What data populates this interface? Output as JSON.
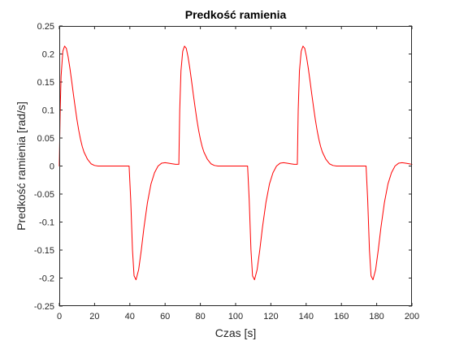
{
  "chart_data": {
    "type": "line",
    "title": "Predkość ramienia",
    "xlabel": "Czas [s]",
    "ylabel": "Predkość ramienia [rad/s]",
    "xlim": [
      0,
      200
    ],
    "ylim": [
      -0.25,
      0.25
    ],
    "xticks": [
      0,
      20,
      40,
      60,
      80,
      100,
      120,
      140,
      160,
      180,
      200
    ],
    "yticks": [
      0.25,
      0.2,
      0.15,
      0.1,
      0.05,
      0,
      -0.05,
      -0.1,
      -0.15,
      -0.2,
      -0.25
    ],
    "xtick_labels": [
      "0",
      "20",
      "40",
      "60",
      "80",
      "100",
      "120",
      "140",
      "160",
      "180",
      "200"
    ],
    "ytick_labels": [
      "0.25",
      "0.2",
      "0.15",
      "0.1",
      "0.05",
      "0",
      "-0.05",
      "-0.1",
      "-0.15",
      "-0.2",
      "-0.25"
    ],
    "grid": false,
    "legend": null,
    "series": [
      {
        "name": "Predkość ramienia",
        "color": "#ff0000",
        "x": [
          0,
          0.5,
          1,
          2,
          3,
          4,
          5,
          6,
          7,
          8,
          9,
          10,
          11,
          12,
          13,
          14,
          16,
          18,
          20,
          22,
          25,
          30,
          35,
          39.6,
          39.6,
          40.5,
          41.5,
          42.4,
          43.5,
          45,
          46.5,
          48,
          50,
          52,
          54,
          56,
          58,
          60,
          62,
          64,
          66,
          67.8,
          67.8,
          68.3,
          69,
          70,
          71,
          72,
          73,
          74,
          75,
          76,
          77,
          78,
          79,
          80,
          81,
          82,
          84,
          86,
          88,
          90,
          92,
          95,
          100,
          105,
          106.8,
          106.8,
          107.7,
          108.7,
          109.6,
          110.7,
          112.2,
          113.7,
          115.2,
          117.2,
          119.2,
          121.2,
          123.2,
          125.2,
          127.2,
          129.2,
          131.2,
          133.2,
          135,
          135,
          135.5,
          136.2,
          137.2,
          138.2,
          139.2,
          140.2,
          141.2,
          142.2,
          143.2,
          144.2,
          145.2,
          146.2,
          147.2,
          148.2,
          149.2,
          151.2,
          153.2,
          155.2,
          157.2,
          159.2,
          162.2,
          167.2,
          172.2,
          174,
          174,
          174.9,
          175.9,
          176.8,
          177.9,
          179.4,
          180.9,
          182.4,
          184.4,
          186.4,
          188.4,
          190.4,
          192.4,
          194.4,
          196.4,
          198.4,
          200
        ],
        "y": [
          0,
          0.1,
          0.16,
          0.205,
          0.214,
          0.21,
          0.195,
          0.175,
          0.152,
          0.128,
          0.105,
          0.083,
          0.064,
          0.048,
          0.035,
          0.025,
          0.012,
          0.004,
          0.001,
          0,
          0,
          0,
          0,
          0,
          -0.001,
          -0.06,
          -0.15,
          -0.196,
          -0.203,
          -0.185,
          -0.15,
          -0.11,
          -0.065,
          -0.032,
          -0.012,
          0,
          0.005,
          0.006,
          0.005,
          0.004,
          0.003,
          0.003,
          0.004,
          0.1,
          0.17,
          0.205,
          0.214,
          0.21,
          0.195,
          0.175,
          0.152,
          0.128,
          0.105,
          0.083,
          0.064,
          0.048,
          0.035,
          0.025,
          0.012,
          0.004,
          0.001,
          0,
          0,
          0,
          0,
          0,
          0,
          -0.001,
          -0.06,
          -0.15,
          -0.196,
          -0.203,
          -0.185,
          -0.15,
          -0.11,
          -0.065,
          -0.032,
          -0.012,
          0,
          0.005,
          0.006,
          0.005,
          0.004,
          0.003,
          0.003,
          0.004,
          0.1,
          0.17,
          0.205,
          0.214,
          0.21,
          0.195,
          0.175,
          0.152,
          0.128,
          0.105,
          0.083,
          0.064,
          0.048,
          0.035,
          0.025,
          0.012,
          0.004,
          0.001,
          0,
          0,
          0,
          0,
          0,
          0,
          -0.001,
          -0.06,
          -0.15,
          -0.196,
          -0.203,
          -0.185,
          -0.15,
          -0.11,
          -0.065,
          -0.032,
          -0.012,
          0,
          0.005,
          0.006,
          0.005,
          0.004,
          0.003
        ]
      }
    ]
  }
}
